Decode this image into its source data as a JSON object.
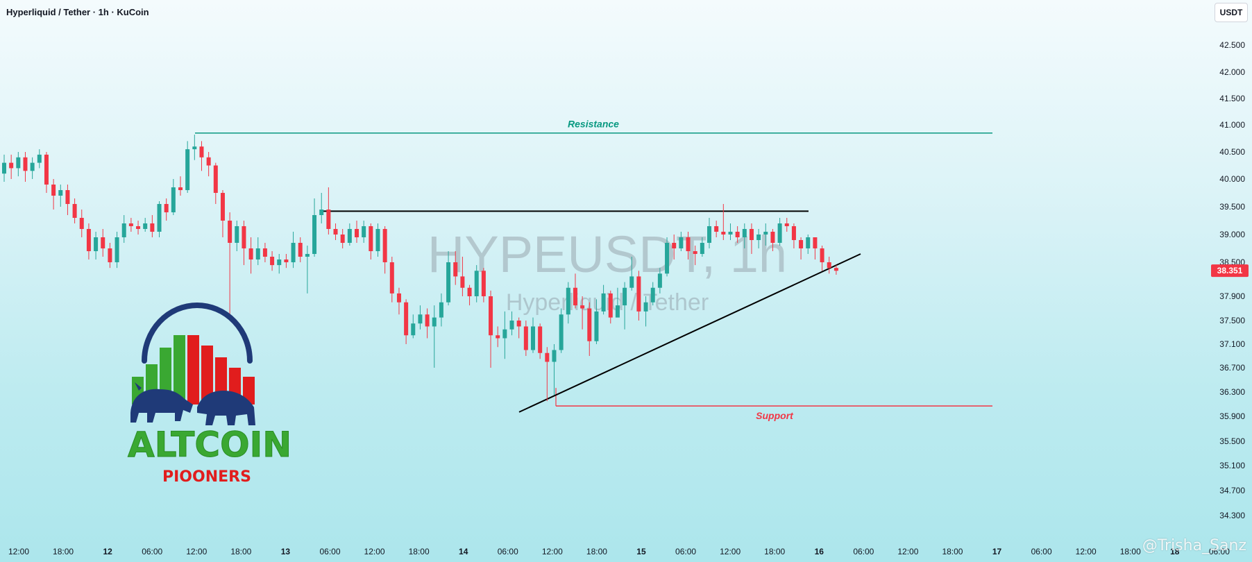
{
  "header": {
    "title": "Hyperliquid / Tether · 1h · KuCoin",
    "currency_button": "USDT"
  },
  "watermark": {
    "symbol": "HYPEUSDT, 1h",
    "name": "Hyperliquid / Tether",
    "credit": "@Trisha_Sanz"
  },
  "logo": {
    "title": "ALTCOIN",
    "subtitle": "PIOONERS",
    "icon": "bull-bear-bars-icon"
  },
  "colors": {
    "up": "#26a69a",
    "down": "#f23645",
    "resistance": "#089981",
    "support": "#f23645",
    "trendline": "#000000",
    "price_badge": "#f23645"
  },
  "chart_data": {
    "type": "candlestick",
    "title": "Hyperliquid / Tether · 1h · KuCoin",
    "ylabel": "USDT",
    "y_ticks": [
      42.5,
      42.0,
      41.5,
      41.0,
      40.5,
      40.0,
      39.5,
      39.0,
      38.5,
      37.9,
      37.5,
      37.1,
      36.7,
      36.3,
      35.9,
      35.5,
      35.1,
      34.7,
      34.3
    ],
    "y_tick_labels": [
      "42.500",
      "42.000",
      "41.500",
      "41.000",
      "40.500",
      "40.000",
      "39.500",
      "39.000",
      "38.500",
      "37.900",
      "37.500",
      "37.100",
      "36.700",
      "36.300",
      "35.900",
      "35.500",
      "35.100",
      "34.700",
      "34.300"
    ],
    "x_tick_labels": [
      "12:00",
      "18:00",
      "12",
      "06:00",
      "12:00",
      "18:00",
      "13",
      "06:00",
      "12:00",
      "18:00",
      "14",
      "06:00",
      "12:00",
      "18:00",
      "15",
      "06:00",
      "12:00",
      "18:00",
      "16",
      "06:00",
      "12:00",
      "18:00",
      "17",
      "06:00",
      "12:00",
      "18:00",
      "18",
      "06:00"
    ],
    "last_price": "38.351",
    "annotations": {
      "resistance": {
        "label": "Resistance",
        "price": 40.85
      },
      "support": {
        "label": "Support",
        "price": 36.07
      },
      "range_top": {
        "price": 39.42
      },
      "trendline": {
        "from_price": 35.97,
        "to_price": 38.65
      }
    },
    "candles": [
      [
        40.1,
        40.3,
        40.45,
        39.95
      ],
      [
        40.3,
        40.2,
        40.45,
        40.0
      ],
      [
        40.2,
        40.4,
        40.5,
        40.05
      ],
      [
        40.4,
        40.15,
        40.5,
        39.95
      ],
      [
        40.15,
        40.3,
        40.4,
        40.0
      ],
      [
        40.3,
        40.45,
        40.55,
        40.2
      ],
      [
        40.45,
        39.9,
        40.5,
        39.75
      ],
      [
        39.9,
        39.7,
        40.0,
        39.45
      ],
      [
        39.7,
        39.8,
        39.9,
        39.5
      ],
      [
        39.8,
        39.55,
        39.9,
        39.35
      ],
      [
        39.55,
        39.3,
        39.65,
        39.2
      ],
      [
        39.3,
        39.1,
        39.45,
        38.95
      ],
      [
        39.1,
        38.7,
        39.2,
        38.55
      ],
      [
        38.7,
        38.95,
        39.05,
        38.55
      ],
      [
        38.95,
        38.75,
        39.1,
        38.6
      ],
      [
        38.75,
        38.5,
        38.85,
        38.4
      ],
      [
        38.5,
        38.95,
        39.05,
        38.4
      ],
      [
        38.95,
        39.2,
        39.35,
        38.85
      ],
      [
        39.2,
        39.15,
        39.3,
        39.05
      ],
      [
        39.15,
        39.1,
        39.25,
        39.0
      ],
      [
        39.1,
        39.2,
        39.3,
        39.05
      ],
      [
        39.2,
        39.05,
        39.35,
        38.95
      ],
      [
        39.05,
        39.55,
        39.6,
        38.95
      ],
      [
        39.55,
        39.4,
        39.65,
        39.25
      ],
      [
        39.4,
        39.85,
        40.0,
        39.35
      ],
      [
        39.85,
        39.8,
        40.05,
        39.7
      ],
      [
        39.8,
        40.55,
        40.7,
        39.75
      ],
      [
        40.55,
        40.6,
        40.82,
        40.35
      ],
      [
        40.6,
        40.4,
        40.7,
        40.15
      ],
      [
        40.4,
        40.25,
        40.5,
        40.05
      ],
      [
        40.25,
        39.75,
        40.3,
        39.55
      ],
      [
        39.75,
        39.25,
        39.8,
        38.95
      ],
      [
        39.25,
        38.85,
        39.4,
        37.5
      ],
      [
        38.85,
        39.15,
        39.25,
        38.7
      ],
      [
        39.15,
        38.75,
        39.25,
        38.45
      ],
      [
        38.75,
        38.55,
        38.95,
        38.3
      ],
      [
        38.55,
        38.75,
        38.95,
        38.45
      ],
      [
        38.75,
        38.6,
        38.85,
        38.5
      ],
      [
        38.6,
        38.45,
        38.7,
        38.35
      ],
      [
        38.45,
        38.55,
        38.65,
        38.3
      ],
      [
        38.55,
        38.5,
        38.65,
        38.4
      ],
      [
        38.5,
        38.85,
        39.05,
        38.4
      ],
      [
        38.85,
        38.6,
        38.95,
        38.5
      ],
      [
        38.6,
        38.65,
        38.8,
        37.95
      ],
      [
        38.65,
        39.35,
        39.65,
        38.6
      ],
      [
        39.35,
        39.45,
        39.75,
        39.2
      ],
      [
        39.45,
        39.1,
        39.85,
        39.0
      ],
      [
        39.1,
        39.0,
        39.2,
        38.9
      ],
      [
        39.0,
        38.85,
        39.1,
        38.75
      ],
      [
        38.85,
        39.1,
        39.2,
        38.8
      ],
      [
        39.1,
        38.95,
        39.25,
        38.85
      ],
      [
        38.95,
        39.15,
        39.25,
        38.85
      ],
      [
        39.15,
        38.7,
        39.2,
        38.55
      ],
      [
        38.7,
        39.1,
        39.2,
        38.6
      ],
      [
        39.1,
        38.5,
        39.15,
        38.3
      ],
      [
        38.5,
        37.95,
        38.6,
        37.8
      ],
      [
        37.95,
        37.8,
        38.05,
        37.6
      ],
      [
        37.8,
        37.25,
        37.85,
        37.1
      ],
      [
        37.25,
        37.45,
        37.6,
        37.2
      ],
      [
        37.45,
        37.6,
        37.75,
        37.35
      ],
      [
        37.6,
        37.4,
        37.7,
        37.2
      ],
      [
        37.4,
        37.55,
        37.75,
        36.7
      ],
      [
        37.55,
        37.8,
        37.95,
        37.4
      ],
      [
        37.8,
        38.5,
        38.7,
        37.75
      ],
      [
        38.5,
        38.25,
        38.7,
        38.1
      ],
      [
        38.25,
        38.05,
        38.6,
        37.9
      ],
      [
        38.05,
        37.9,
        38.1,
        37.75
      ],
      [
        37.9,
        38.35,
        38.45,
        37.8
      ],
      [
        38.35,
        37.9,
        38.4,
        37.8
      ],
      [
        37.9,
        37.25,
        38.0,
        36.7
      ],
      [
        37.25,
        37.2,
        37.4,
        37.05
      ],
      [
        37.2,
        37.35,
        37.65,
        36.85
      ],
      [
        37.35,
        37.5,
        37.65,
        37.25
      ],
      [
        37.5,
        37.4,
        37.55,
        37.2
      ],
      [
        37.4,
        37.0,
        37.5,
        36.9
      ],
      [
        37.0,
        37.4,
        37.55,
        36.95
      ],
      [
        37.4,
        36.95,
        37.45,
        36.85
      ],
      [
        36.95,
        36.8,
        37.05,
        36.15
      ],
      [
        36.8,
        37.0,
        37.1,
        36.25
      ],
      [
        37.0,
        37.6,
        37.7,
        36.95
      ],
      [
        37.6,
        38.05,
        38.15,
        37.45
      ],
      [
        38.05,
        37.75,
        38.3,
        37.7
      ],
      [
        37.75,
        37.7,
        37.9,
        37.35
      ],
      [
        37.7,
        37.15,
        37.8,
        36.9
      ],
      [
        37.15,
        37.65,
        37.85,
        37.1
      ],
      [
        37.65,
        37.95,
        38.1,
        37.6
      ],
      [
        37.95,
        37.55,
        38.0,
        37.45
      ],
      [
        37.55,
        37.75,
        38.05,
        37.6
      ],
      [
        37.75,
        38.05,
        38.15,
        37.35
      ],
      [
        38.05,
        38.25,
        38.6,
        38.0
      ],
      [
        38.25,
        37.65,
        38.35,
        37.5
      ],
      [
        37.65,
        37.8,
        37.9,
        37.4
      ],
      [
        37.8,
        38.05,
        38.15,
        37.75
      ],
      [
        38.05,
        38.3,
        38.4,
        37.95
      ],
      [
        38.3,
        38.85,
        38.95,
        38.25
      ],
      [
        38.85,
        38.75,
        39.0,
        38.55
      ],
      [
        38.75,
        38.95,
        39.05,
        38.7
      ],
      [
        38.95,
        38.7,
        39.05,
        38.55
      ],
      [
        38.7,
        38.65,
        38.8,
        38.45
      ],
      [
        38.65,
        38.85,
        38.95,
        38.6
      ],
      [
        38.85,
        39.15,
        39.3,
        38.75
      ],
      [
        39.15,
        39.05,
        39.25,
        38.95
      ],
      [
        39.05,
        39.0,
        39.55,
        38.9
      ],
      [
        39.0,
        39.05,
        39.2,
        38.9
      ],
      [
        39.05,
        38.95,
        39.15,
        38.85
      ],
      [
        38.95,
        39.1,
        39.2,
        38.75
      ],
      [
        39.1,
        38.9,
        39.2,
        38.65
      ],
      [
        38.9,
        39.0,
        39.1,
        38.75
      ],
      [
        39.0,
        39.05,
        39.2,
        38.8
      ],
      [
        39.05,
        38.85,
        39.1,
        38.7
      ],
      [
        38.85,
        39.2,
        39.3,
        38.8
      ],
      [
        39.2,
        39.15,
        39.3,
        39.05
      ],
      [
        39.15,
        38.9,
        39.2,
        38.75
      ],
      [
        38.9,
        38.75,
        38.95,
        38.55
      ],
      [
        38.75,
        38.95,
        39.0,
        38.65
      ],
      [
        38.95,
        38.75,
        38.95,
        38.55
      ],
      [
        38.75,
        38.5,
        38.8,
        38.35
      ],
      [
        38.5,
        38.4,
        38.6,
        38.3
      ],
      [
        38.4,
        38.35,
        38.45,
        38.28
      ]
    ]
  }
}
